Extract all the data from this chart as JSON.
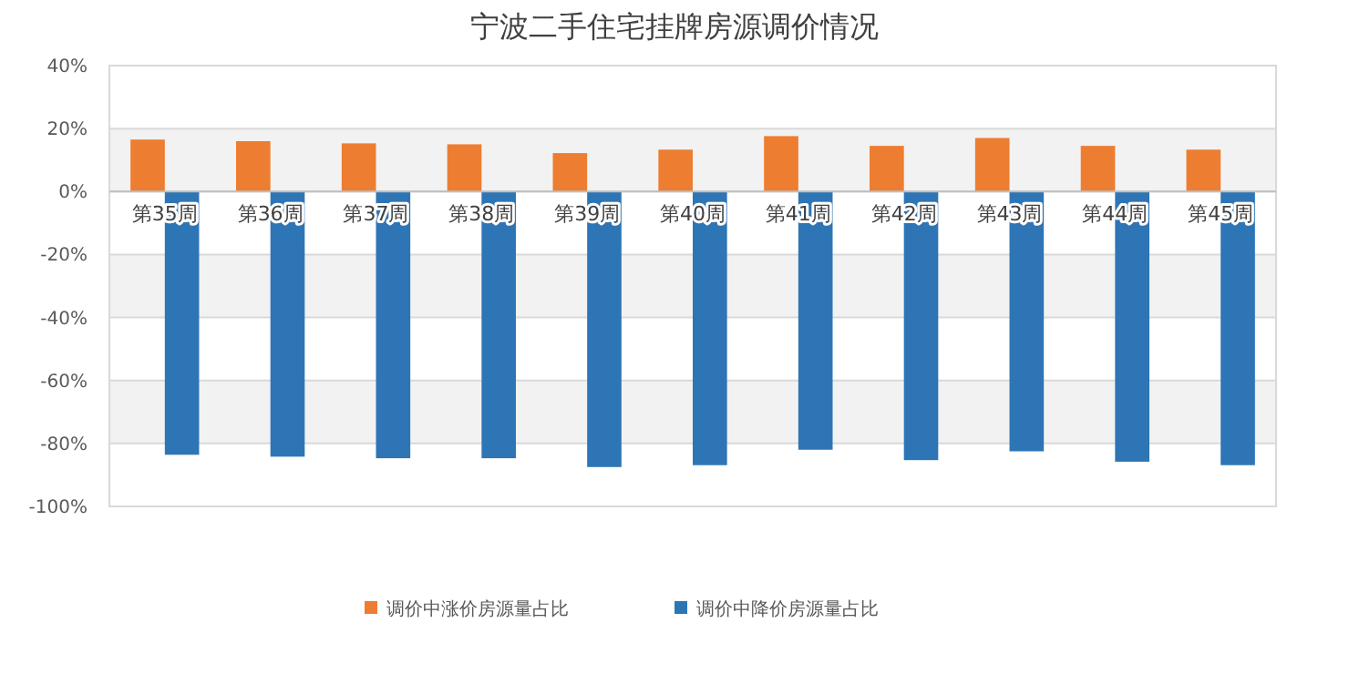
{
  "chart_data": {
    "type": "bar",
    "title": "宁波二手住宅挂牌房源调价情况",
    "categories": [
      "第35周",
      "第36周",
      "第37周",
      "第38周",
      "第39周",
      "第40周",
      "第41周",
      "第42周",
      "第43周",
      "第44周",
      "第45周"
    ],
    "series": [
      {
        "name": "调价中涨价房源量占比",
        "color": "#ed7d31",
        "values": [
          16.5,
          16,
          15.3,
          15,
          12.2,
          13.3,
          17.6,
          14.5,
          17,
          14.5,
          13.3
        ]
      },
      {
        "name": "调价中降价房源量占比",
        "color": "#2e75b6",
        "values": [
          -83.6,
          -84.2,
          -84.7,
          -84.7,
          -87.5,
          -86.9,
          -82,
          -85.3,
          -82.5,
          -85.8,
          -86.9
        ]
      }
    ],
    "ylim": [
      -100,
      40
    ],
    "yticks": [
      {
        "value": -100,
        "label": "-100%"
      },
      {
        "value": -80,
        "label": "-80%"
      },
      {
        "value": -60,
        "label": "-60%"
      },
      {
        "value": -40,
        "label": "-40%"
      },
      {
        "value": -20,
        "label": "-20%"
      },
      {
        "value": 0,
        "label": "0%"
      },
      {
        "value": 20,
        "label": "20%"
      },
      {
        "value": 40,
        "label": "40%"
      }
    ],
    "grid": "y",
    "legend": "bottom"
  }
}
